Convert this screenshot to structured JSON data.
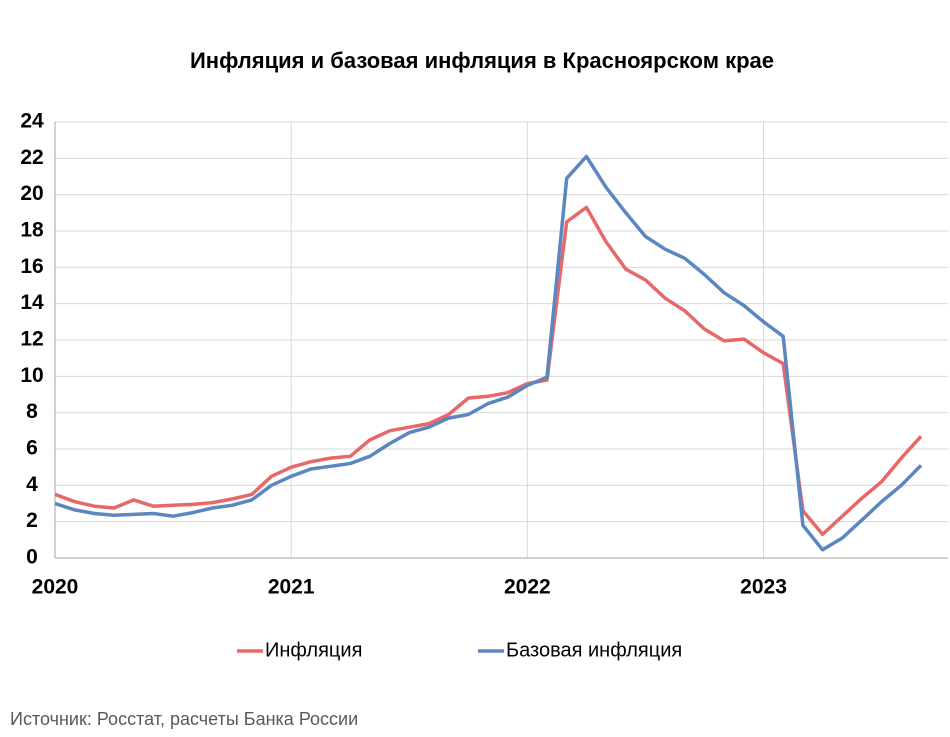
{
  "chart_data": {
    "type": "line",
    "title": "Инфляция и базовая инфляция в Красноярском крае",
    "source": "Источник: Росстат, расчеты Банка России",
    "categories": [
      "2020",
      null,
      null,
      null,
      null,
      null,
      null,
      null,
      null,
      null,
      null,
      null,
      "2021",
      null,
      null,
      null,
      null,
      null,
      null,
      null,
      null,
      null,
      null,
      null,
      "2022",
      null,
      null,
      null,
      null,
      null,
      null,
      null,
      null,
      null,
      null,
      null,
      "2023",
      null,
      null,
      null,
      null,
      null,
      null,
      null,
      null
    ],
    "series": [
      {
        "name": "Инфляция",
        "color": "#e8686a",
        "values": [
          3.5,
          3.1,
          2.85,
          2.75,
          3.2,
          2.85,
          2.9,
          2.95,
          3.05,
          3.25,
          3.5,
          4.5,
          5.0,
          5.3,
          5.5,
          5.6,
          6.5,
          7.0,
          7.2,
          7.4,
          7.9,
          8.8,
          8.9,
          9.1,
          9.6,
          9.8,
          18.5,
          19.3,
          17.4,
          15.9,
          15.3,
          14.3,
          13.6,
          12.6,
          11.95,
          12.05,
          11.3,
          10.7,
          2.6,
          1.3,
          2.3,
          3.3,
          4.2,
          5.5,
          6.7
        ]
      },
      {
        "name": "Базовая инфляция",
        "color": "#5b86c0",
        "values": [
          3.0,
          2.65,
          2.45,
          2.35,
          2.4,
          2.45,
          2.3,
          2.5,
          2.75,
          2.9,
          3.2,
          4.0,
          4.5,
          4.9,
          5.05,
          5.2,
          5.6,
          6.3,
          6.9,
          7.2,
          7.7,
          7.9,
          8.5,
          8.85,
          9.5,
          9.95,
          20.9,
          22.1,
          20.4,
          19.0,
          17.7,
          17.0,
          16.5,
          15.6,
          14.6,
          13.9,
          13.0,
          12.2,
          1.8,
          0.45,
          1.1,
          2.1,
          3.1,
          4.0,
          5.1
        ]
      }
    ],
    "ylim": [
      0,
      24
    ],
    "yticks": [
      0,
      2,
      4,
      6,
      8,
      10,
      12,
      14,
      16,
      18,
      20,
      22,
      24
    ],
    "grid": true,
    "legend": "bottom"
  }
}
